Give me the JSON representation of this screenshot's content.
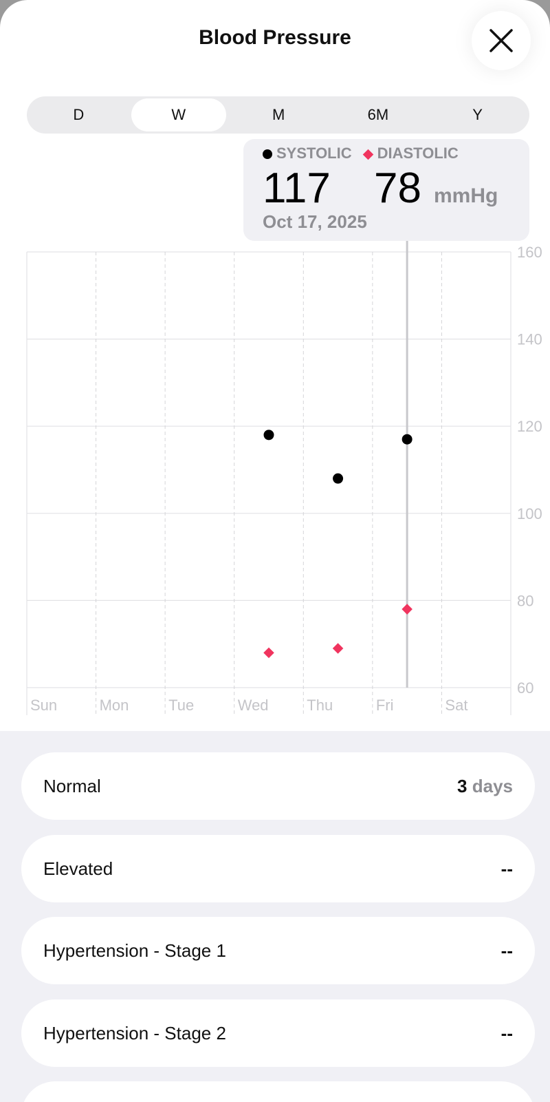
{
  "header": {
    "title": "Blood Pressure",
    "close_icon": "x-icon"
  },
  "range_tabs": [
    {
      "label": "D"
    },
    {
      "label": "W",
      "active": true
    },
    {
      "label": "M"
    },
    {
      "label": "6M"
    },
    {
      "label": "Y"
    }
  ],
  "selection": {
    "systolic_label": "SYSTOLIC",
    "diastolic_label": "DIASTOLIC",
    "systolic": "117",
    "diastolic": "78",
    "unit": "mmHg",
    "date": "Oct 17, 2025"
  },
  "chart_data": {
    "type": "scatter",
    "categories": [
      "Sun",
      "Mon",
      "Tue",
      "Wed",
      "Thu",
      "Fri",
      "Sat"
    ],
    "ylim": [
      60,
      160
    ],
    "yticks": [
      "60",
      "80",
      "100",
      "120",
      "140",
      "160"
    ],
    "grid": true,
    "series": [
      {
        "name": "SYSTOLIC",
        "marker": "circle",
        "color": "#000000",
        "points": [
          {
            "x": "Wed",
            "y": 118
          },
          {
            "x": "Thu",
            "y": 108
          },
          {
            "x": "Fri",
            "y": 117
          }
        ]
      },
      {
        "name": "DIASTOLIC",
        "marker": "diamond",
        "color": "#f0345e",
        "points": [
          {
            "x": "Wed",
            "y": 68
          },
          {
            "x": "Thu",
            "y": 69
          },
          {
            "x": "Fri",
            "y": 78
          }
        ]
      }
    ],
    "selected": "Fri"
  },
  "categories": [
    {
      "label": "Normal",
      "count": "3",
      "unit": "days"
    },
    {
      "label": "Elevated",
      "value": "--"
    },
    {
      "label": "Hypertension - Stage 1",
      "value": "--"
    },
    {
      "label": "Hypertension - Stage 2",
      "value": "--"
    },
    {
      "label": ""
    }
  ]
}
